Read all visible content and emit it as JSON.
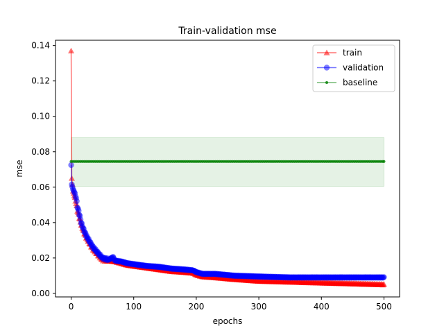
{
  "chart_data": {
    "type": "line",
    "title": "Train-validation mse",
    "xlabel": "epochs",
    "ylabel": "mse",
    "xlim": [
      -25,
      525
    ],
    "ylim": [
      -0.002,
      0.143
    ],
    "xticks": [
      0,
      100,
      200,
      300,
      400,
      500
    ],
    "yticks": [
      0.0,
      0.02,
      0.04,
      0.06,
      0.08,
      0.1,
      0.12,
      0.14
    ],
    "ytick_labels": [
      "0.00",
      "0.02",
      "0.04",
      "0.06",
      "0.08",
      "0.10",
      "0.12",
      "0.14"
    ],
    "legend_position": "top-right",
    "grid": false,
    "band": {
      "x": [
        0,
        500
      ],
      "y_low": 0.0605,
      "y_high": 0.088,
      "color": "#008000",
      "opacity": 0.1
    },
    "series": [
      {
        "name": "train",
        "color": "#ff0000",
        "marker": "triangle",
        "x": [
          0,
          1,
          3,
          5,
          8,
          10,
          13,
          16,
          20,
          25,
          30,
          35,
          40,
          45,
          50,
          60,
          70,
          80,
          90,
          100,
          120,
          140,
          160,
          180,
          195,
          200,
          210,
          230,
          260,
          300,
          350,
          400,
          450,
          500
        ],
        "y": [
          0.137,
          0.065,
          0.058,
          0.055,
          0.051,
          0.047,
          0.043,
          0.039,
          0.035,
          0.031,
          0.028,
          0.025,
          0.023,
          0.021,
          0.019,
          0.0185,
          0.018,
          0.017,
          0.016,
          0.0155,
          0.0145,
          0.0135,
          0.0125,
          0.012,
          0.0115,
          0.0105,
          0.0095,
          0.009,
          0.008,
          0.007,
          0.0065,
          0.006,
          0.0055,
          0.005
        ]
      },
      {
        "name": "validation",
        "color": "#0000ff",
        "marker": "circle",
        "x": [
          0,
          1,
          3,
          5,
          8,
          10,
          13,
          16,
          20,
          25,
          30,
          35,
          40,
          45,
          50,
          60,
          67,
          70,
          80,
          90,
          100,
          120,
          140,
          160,
          180,
          195,
          200,
          210,
          230,
          260,
          300,
          350,
          400,
          450,
          500
        ],
        "y": [
          0.0725,
          0.0615,
          0.059,
          0.057,
          0.054,
          0.049,
          0.045,
          0.04,
          0.036,
          0.032,
          0.029,
          0.026,
          0.024,
          0.022,
          0.02,
          0.019,
          0.0205,
          0.0185,
          0.018,
          0.017,
          0.0165,
          0.0155,
          0.015,
          0.014,
          0.0135,
          0.013,
          0.012,
          0.011,
          0.011,
          0.01,
          0.0095,
          0.009,
          0.009,
          0.009,
          0.009
        ]
      },
      {
        "name": "baseline",
        "color": "#008000",
        "marker": "point",
        "x": [
          0,
          500
        ],
        "y": [
          0.0745,
          0.0745
        ]
      }
    ]
  }
}
